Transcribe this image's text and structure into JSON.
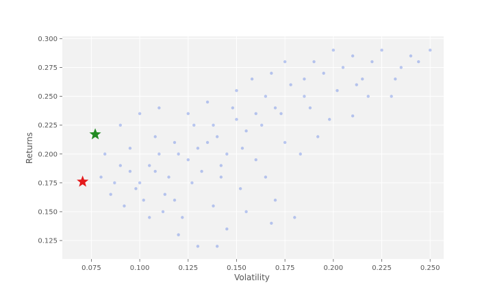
{
  "chart_data": {
    "type": "scatter",
    "title": "",
    "xlabel": "Volatility",
    "ylabel": "Returns",
    "xlim": [
      0.06,
      0.257
    ],
    "ylim": [
      0.109,
      0.302
    ],
    "x_ticks": [
      0.075,
      0.1,
      0.125,
      0.15,
      0.175,
      0.2,
      0.225,
      0.25
    ],
    "x_tick_labels": [
      "0.075",
      "0.100",
      "0.125",
      "0.150",
      "0.175",
      "0.200",
      "0.225",
      "0.250"
    ],
    "y_ticks": [
      0.125,
      0.15,
      0.175,
      0.2,
      0.225,
      0.25,
      0.275,
      0.3
    ],
    "y_tick_labels": [
      "0.125",
      "0.150",
      "0.175",
      "0.200",
      "0.225",
      "0.250",
      "0.275",
      "0.300"
    ],
    "grid": true,
    "background": "#f2f2f2",
    "grid_color": "#ffffff",
    "series": [
      {
        "marker": "circle",
        "color": "#4169e1",
        "opacity": 0.35,
        "points": [
          [
            0.12,
            0.2
          ],
          [
            0.1,
            0.175
          ],
          [
            0.14,
            0.215
          ],
          [
            0.16,
            0.235
          ],
          [
            0.105,
            0.19
          ],
          [
            0.13,
            0.205
          ],
          [
            0.115,
            0.18
          ],
          [
            0.15,
            0.23
          ],
          [
            0.17,
            0.24
          ],
          [
            0.09,
            0.19
          ],
          [
            0.135,
            0.21
          ],
          [
            0.125,
            0.195
          ],
          [
            0.11,
            0.2
          ],
          [
            0.145,
            0.2
          ],
          [
            0.155,
            0.22
          ],
          [
            0.118,
            0.16
          ],
          [
            0.128,
            0.225
          ],
          [
            0.165,
            0.25
          ],
          [
            0.178,
            0.26
          ],
          [
            0.185,
            0.265
          ],
          [
            0.195,
            0.27
          ],
          [
            0.21,
            0.285
          ],
          [
            0.225,
            0.29
          ],
          [
            0.24,
            0.285
          ],
          [
            0.25,
            0.29
          ],
          [
            0.2,
            0.29
          ],
          [
            0.185,
            0.25
          ],
          [
            0.23,
            0.25
          ],
          [
            0.21,
            0.233
          ],
          [
            0.198,
            0.23
          ],
          [
            0.175,
            0.21
          ],
          [
            0.165,
            0.18
          ],
          [
            0.168,
            0.14
          ],
          [
            0.18,
            0.145
          ],
          [
            0.12,
            0.13
          ],
          [
            0.13,
            0.12
          ],
          [
            0.14,
            0.12
          ],
          [
            0.145,
            0.135
          ],
          [
            0.085,
            0.165
          ],
          [
            0.08,
            0.18
          ],
          [
            0.082,
            0.2
          ],
          [
            0.09,
            0.225
          ],
          [
            0.1,
            0.235
          ],
          [
            0.11,
            0.24
          ],
          [
            0.102,
            0.16
          ],
          [
            0.112,
            0.15
          ],
          [
            0.122,
            0.145
          ],
          [
            0.095,
            0.205
          ],
          [
            0.108,
            0.215
          ],
          [
            0.125,
            0.235
          ],
          [
            0.135,
            0.245
          ],
          [
            0.15,
            0.255
          ],
          [
            0.158,
            0.265
          ],
          [
            0.168,
            0.27
          ],
          [
            0.175,
            0.28
          ],
          [
            0.19,
            0.28
          ],
          [
            0.205,
            0.275
          ],
          [
            0.215,
            0.265
          ],
          [
            0.22,
            0.28
          ],
          [
            0.235,
            0.275
          ],
          [
            0.142,
            0.19
          ],
          [
            0.152,
            0.17
          ],
          [
            0.16,
            0.195
          ],
          [
            0.138,
            0.225
          ],
          [
            0.148,
            0.24
          ],
          [
            0.118,
            0.21
          ],
          [
            0.108,
            0.185
          ],
          [
            0.098,
            0.17
          ],
          [
            0.113,
            0.165
          ],
          [
            0.127,
            0.175
          ],
          [
            0.132,
            0.185
          ],
          [
            0.142,
            0.18
          ],
          [
            0.153,
            0.205
          ],
          [
            0.163,
            0.225
          ],
          [
            0.173,
            0.235
          ],
          [
            0.095,
            0.185
          ],
          [
            0.087,
            0.175
          ],
          [
            0.092,
            0.155
          ],
          [
            0.105,
            0.145
          ],
          [
            0.138,
            0.155
          ],
          [
            0.155,
            0.15
          ],
          [
            0.17,
            0.16
          ],
          [
            0.183,
            0.2
          ],
          [
            0.192,
            0.215
          ],
          [
            0.188,
            0.24
          ],
          [
            0.202,
            0.255
          ],
          [
            0.212,
            0.26
          ],
          [
            0.218,
            0.25
          ],
          [
            0.244,
            0.28
          ],
          [
            0.232,
            0.265
          ]
        ]
      }
    ],
    "highlights": [
      {
        "marker": "star",
        "color": "#e41a1c",
        "x": 0.0705,
        "y": 0.176
      },
      {
        "marker": "star",
        "color": "#228b22",
        "x": 0.077,
        "y": 0.217
      }
    ]
  }
}
